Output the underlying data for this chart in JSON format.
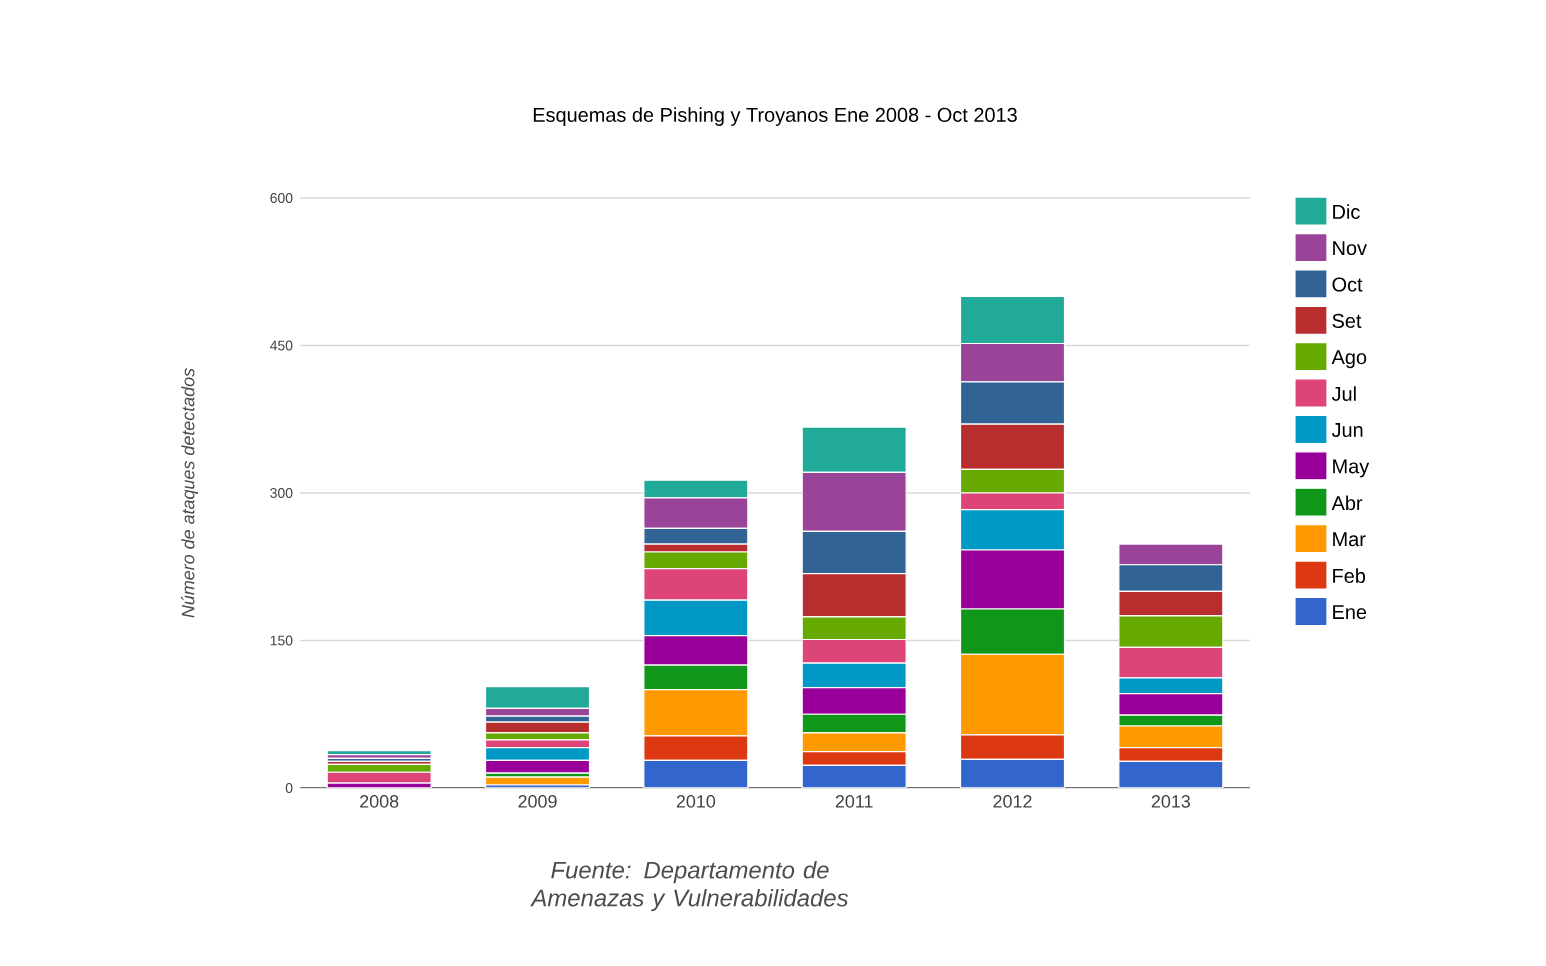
{
  "chart_data": {
    "type": "bar",
    "stacked": true,
    "title": "Esquemas de Pishing y Troyanos Ene 2008 - Oct 2013",
    "ylabel": "Número de ataques detectados",
    "annotations": [
      "Fuente: Departamento de Amenazas y Vulnerabilidades"
    ],
    "categories": [
      "2008",
      "2009",
      "2010",
      "2011",
      "2012",
      "2013"
    ],
    "ylim": [
      0,
      600
    ],
    "yticks": [
      0,
      150,
      300,
      450,
      600
    ],
    "grid": "y",
    "legend": "right",
    "series": [
      {
        "name": "Ene",
        "color": "#3366cc",
        "values": [
          null,
          3,
          28,
          23,
          29,
          27
        ]
      },
      {
        "name": "Feb",
        "color": "#dc3912",
        "values": [
          null,
          null,
          25,
          14,
          25,
          14
        ]
      },
      {
        "name": "Mar",
        "color": "#ff9900",
        "values": [
          null,
          8,
          47,
          19,
          82,
          22
        ]
      },
      {
        "name": "Abr",
        "color": "#109618",
        "values": [
          null,
          4,
          25,
          19,
          46,
          11
        ]
      },
      {
        "name": "May",
        "color": "#990099",
        "values": [
          5,
          13,
          30,
          27,
          60,
          22
        ]
      },
      {
        "name": "Jun",
        "color": "#0099c6",
        "values": [
          null,
          13,
          36,
          25,
          41,
          16
        ]
      },
      {
        "name": "Jul",
        "color": "#dd4477",
        "values": [
          11,
          8,
          32,
          24,
          17,
          31
        ]
      },
      {
        "name": "Ago",
        "color": "#66aa00",
        "values": [
          8,
          7,
          17,
          23,
          24,
          32
        ]
      },
      {
        "name": "Set",
        "color": "#b82e2e",
        "values": [
          3,
          11,
          8,
          44,
          46,
          25
        ]
      },
      {
        "name": "Oct",
        "color": "#316395",
        "values": [
          3,
          6,
          16,
          43,
          43,
          27
        ]
      },
      {
        "name": "Nov",
        "color": "#994499",
        "values": [
          4,
          8,
          31,
          60,
          39,
          21
        ]
      },
      {
        "name": "Dic",
        "color": "#22aa99",
        "values": [
          4,
          22,
          18,
          46,
          48,
          0
        ]
      }
    ]
  }
}
